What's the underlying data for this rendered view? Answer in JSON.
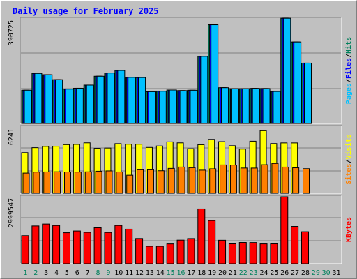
{
  "chart_data": {
    "type": "bar",
    "title": "Daily usage for February 2025",
    "categories": [
      "1",
      "2",
      "3",
      "4",
      "5",
      "6",
      "7",
      "8",
      "9",
      "10",
      "11",
      "12",
      "13",
      "14",
      "15",
      "16",
      "17",
      "18",
      "19",
      "20",
      "21",
      "22",
      "23",
      "24",
      "25",
      "26",
      "27",
      "28",
      "29",
      "30",
      "31"
    ],
    "weekend_days": [
      "1",
      "2",
      "8",
      "9",
      "15",
      "16",
      "22",
      "23",
      "29",
      "30"
    ],
    "panels": [
      {
        "name": "hits-files-pages",
        "max_label": "390725",
        "ylim": [
          0,
          390725
        ],
        "grid": true,
        "legend": [
          {
            "label": "Pages",
            "color": "#00c0ff"
          },
          {
            "label": "Files",
            "color": "#0000ff"
          },
          {
            "label": "Hits",
            "color": "#00805c"
          }
        ],
        "series": [
          {
            "name": "Hits",
            "color": "#00805c",
            "values": [
              124250,
              186800,
              182100,
              163600,
              128400,
              131600,
              143300,
              176400,
              188400,
              197800,
              172200,
              171600,
              118800,
              120500,
              125000,
              122800,
              124100,
              250400,
              368500,
              133600,
              130100,
              130100,
              130900,
              130500,
              119600,
              392800,
              304300,
              225400,
              null,
              null,
              null
            ]
          },
          {
            "name": "Files",
            "color": "#0000ff",
            "values": [
              124250,
              186800,
              182100,
              163600,
              128400,
              131600,
              143300,
              176400,
              188400,
              197800,
              172200,
              171600,
              118800,
              120500,
              125000,
              122800,
              124100,
              250400,
              368500,
              133600,
              130100,
              130100,
              130900,
              130500,
              119600,
              392800,
              304300,
              225400,
              null,
              null,
              null
            ]
          },
          {
            "name": "Pages",
            "color": "#00c0ff",
            "values": [
              124250,
              186800,
              182100,
              163600,
              128400,
              131600,
              143300,
              176400,
              188400,
              197800,
              172200,
              171600,
              118800,
              120500,
              125000,
              122800,
              124100,
              250400,
              368500,
              133600,
              130100,
              130100,
              130900,
              130500,
              119600,
              392800,
              304300,
              225400,
              null,
              null,
              null
            ]
          }
        ]
      },
      {
        "name": "visits-sites",
        "max_label": "6241",
        "ylim": [
          0,
          6241
        ],
        "grid": true,
        "legend": [
          {
            "label": "Sites",
            "color": "#ff8000"
          },
          {
            "label": "Visits",
            "color": "#ffff00"
          }
        ],
        "series": [
          {
            "name": "Visits",
            "color": "#ffff00",
            "values": [
              3824,
              4293,
              4411,
              4427,
              4578,
              4603,
              4745,
              4230,
              4260,
              4671,
              4617,
              4617,
              4316,
              4454,
              4836,
              4744,
              4193,
              4572,
              5073,
              4859,
              4476,
              4158,
              4901,
              5890,
              4680,
              4739,
              4738,
              null,
              null,
              null,
              null
            ]
          },
          {
            "name": "Sites",
            "color": "#ff8000",
            "values": [
              1899,
              1994,
              2007,
              2020,
              2001,
              1995,
              2014,
              2075,
              2105,
              2005,
              1698,
              2211,
              2209,
              2119,
              2341,
              2469,
              2409,
              2174,
              2302,
              2666,
              2655,
              2375,
              2371,
              2685,
              2806,
              2466,
              2396,
              2313,
              null,
              null,
              null
            ]
          }
        ]
      },
      {
        "name": "kbytes",
        "max_label": "2999547",
        "ylim": [
          0,
          2999547
        ],
        "grid": true,
        "legend": [
          {
            "label": "KBytes",
            "color": "#ff0000"
          }
        ],
        "series": [
          {
            "name": "KBytes",
            "color": "#ff0000",
            "values": [
              1256000,
              1691000,
              1777000,
              1711000,
              1388000,
              1466000,
              1404000,
              1610000,
              1399000,
              1712000,
              1548000,
              1130000,
              780000,
              780000,
              886000,
              1056000,
              1127000,
              2454000,
              1932000,
              1051000,
              890000,
              952000,
              948000,
              888000,
              890000,
              2999547,
              1670000,
              1434000,
              null,
              null,
              null
            ]
          }
        ]
      }
    ]
  }
}
